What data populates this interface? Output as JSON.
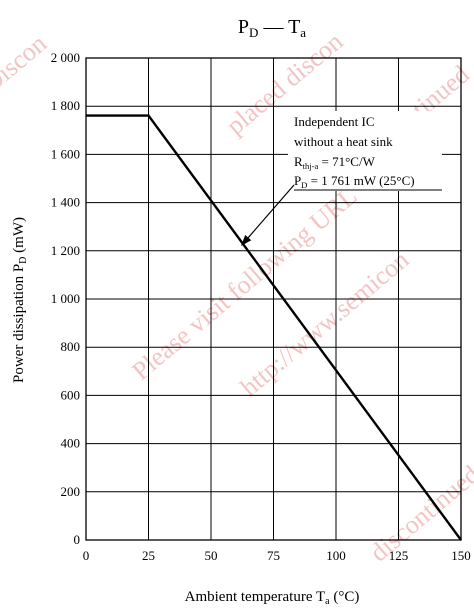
{
  "chart_data": {
    "type": "line",
    "title": {
      "main": "P",
      "main_sub": "D",
      "dash": " — ",
      "second": "T",
      "second_sub": "a"
    },
    "ylabel": {
      "main": "Power dissipation  P",
      "sub": "D",
      "unit": "  (mW)"
    },
    "xlabel": {
      "main": "Ambient temperature  T",
      "sub": "a",
      "unit": "  (°C)"
    },
    "x_ticks": [
      0,
      25,
      50,
      75,
      100,
      125,
      150
    ],
    "y_ticks": [
      0,
      200,
      400,
      600,
      800,
      1000,
      1200,
      1400,
      1600,
      1800,
      2000
    ],
    "y_tick_labels": [
      "0",
      "200",
      "400",
      "600",
      "800",
      "1 000",
      "1 200",
      "1 400",
      "1 600",
      "1 800",
      "2 000"
    ],
    "xlim": [
      0,
      150
    ],
    "ylim": [
      0,
      2000
    ],
    "grid": true,
    "series": [
      {
        "x": [
          0,
          25,
          150
        ],
        "y": [
          1761,
          1761,
          0
        ]
      }
    ],
    "annotation": {
      "lines": [
        {
          "text": "Independent IC"
        },
        {
          "text": "without a heat sink"
        },
        {
          "main": "R",
          "sub": "thj-a",
          "rest": " = 71°C/W"
        },
        {
          "main": "P",
          "sub": "D",
          "rest": " = 1 761 mW (25°C)"
        }
      ],
      "arrow_target": {
        "x": 62,
        "y": 1220
      }
    },
    "watermark": [
      "Please visit following URL",
      "http://www.semicon",
      "placed discon",
      "discontinued",
      "discontinued",
      "Discon"
    ]
  }
}
